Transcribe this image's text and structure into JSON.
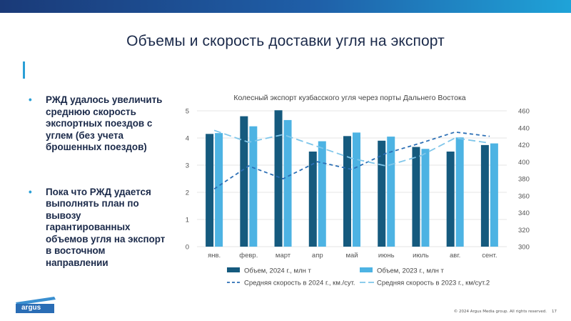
{
  "header": {
    "title": "Объемы и скорость доставки угля на экспорт"
  },
  "bullets": [
    "РЖД удалось увеличить среднюю скорость экспортных поездов с углем (без учета брошенных поездов)",
    "Пока что РЖД удается выполнять план по вывозу гарантированных объемов угля на экспорт в восточном направлении"
  ],
  "chart_data": {
    "type": "bar+line",
    "title": "Колесный экспорт кузбасского угля через порты Дальнего Востока",
    "categories": [
      "янв.",
      "февр.",
      "март",
      "апр",
      "май",
      "июнь",
      "июль",
      "авг.",
      "сент."
    ],
    "left_axis": {
      "ylim": [
        0,
        5
      ],
      "ticks": [
        0,
        1,
        2,
        3,
        4,
        5
      ]
    },
    "right_axis": {
      "ylim": [
        300,
        460
      ],
      "ticks": [
        300,
        320,
        340,
        360,
        380,
        400,
        420,
        440,
        460
      ]
    },
    "bars": [
      {
        "name": "Объем, 2024 г., млн т",
        "color": "#155a7e",
        "values": [
          4.15,
          4.8,
          5.02,
          3.5,
          4.07,
          3.9,
          3.67,
          3.5,
          3.74
        ]
      },
      {
        "name": "Объем, 2023 г., млн т",
        "color": "#4db3e3",
        "values": [
          4.18,
          4.43,
          4.66,
          3.88,
          4.2,
          4.05,
          3.6,
          4.02,
          3.8
        ]
      }
    ],
    "lines": [
      {
        "name": "Средняя скорость в 2024 г., км./сут.",
        "color": "#2c6fb5",
        "dash": "dashed",
        "values": [
          368,
          395,
          380,
          400,
          391,
          410,
          422,
          435,
          430
        ]
      },
      {
        "name": "Средняя скорость в 2023 г., км/сут.2",
        "color": "#7fc6ea",
        "dash": "longdash",
        "values": [
          437,
          423,
          432,
          418,
          404,
          395,
          407,
          428,
          422
        ]
      }
    ],
    "grid": true,
    "legend_position": "bottom"
  },
  "footer": {
    "copyright": "© 2024 Argus Media group. All rights reserved.",
    "page": "17"
  },
  "logo": {
    "text": "argus"
  }
}
